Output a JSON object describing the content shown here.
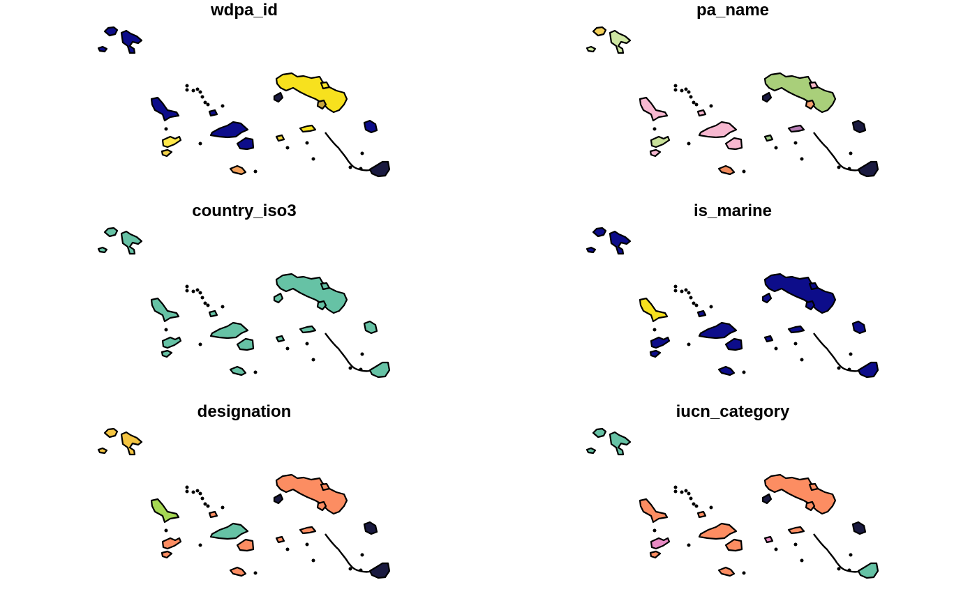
{
  "panels": [
    {
      "title": "wdpa_id",
      "colors": [
        "#0d0d8a",
        "#0d0d8a",
        "#0d0d8a",
        "#0d0d8a",
        "#f7e11e",
        "#0d0d8a",
        "#0d0d8a",
        "#0d0d8a",
        "#ffe84a",
        "#f3d34b",
        "#f7e11e",
        "#c9a63c",
        "#0d0d8a",
        "#f4a15a",
        "#1a1a40",
        "#1a1a40",
        "#f2d63a",
        "#f9e42a"
      ]
    },
    {
      "title": "pa_name",
      "colors": [
        "#f4d05a",
        "#cfe7a3",
        "#cfe7a3",
        "#f7b8d0",
        "#a9cf7a",
        "#f7b8d0",
        "#f7b8d0",
        "#f7b8d0",
        "#c9e19a",
        "#f7b8d0",
        "#b77db5",
        "#f6a270",
        "#1a1a40",
        "#f08a5c",
        "#1a1a40",
        "#1a1a40",
        "#a3d08a",
        "#f6b8c8"
      ]
    },
    {
      "title": "country_iso3",
      "colors": [
        "#66c2a5",
        "#66c2a5",
        "#66c2a5",
        "#66c2a5",
        "#66c2a5",
        "#66c2a5",
        "#66c2a5",
        "#66c2a5",
        "#66c2a5",
        "#66c2a5",
        "#66c2a5",
        "#66c2a5",
        "#66c2a5",
        "#66c2a5",
        "#66c2a5",
        "#66c2a5",
        "#66c2a5",
        "#66c2a5"
      ]
    },
    {
      "title": "is_marine",
      "colors": [
        "#0d0d8a",
        "#0d0d8a",
        "#0d0d8a",
        "#f7e11e",
        "#0d0d8a",
        "#0d0d8a",
        "#0d0d8a",
        "#0d0d8a",
        "#0d0d8a",
        "#0d0d8a",
        "#0d0d8a",
        "#0d0d8a",
        "#0d0d8a",
        "#0d0d8a",
        "#0d0d8a",
        "#0d0d8a",
        "#0d0d8a",
        "#0d0d8a"
      ]
    },
    {
      "title": "designation",
      "colors": [
        "#f4c542",
        "#f4c542",
        "#f4c542",
        "#a6d854",
        "#fc8d62",
        "#fc8d62",
        "#66c2a5",
        "#fc8d62",
        "#fc8d62",
        "#fc8d62",
        "#fc8d62",
        "#fc8d62",
        "#1a1a40",
        "#fc8d62",
        "#1a1a40",
        "#1a1a40",
        "#fc8d62",
        "#fc8d62"
      ]
    },
    {
      "title": "iucn_category",
      "colors": [
        "#66c2a5",
        "#66c2a5",
        "#66c2a5",
        "#fc8d62",
        "#fc8d62",
        "#fc8d62",
        "#fc8d62",
        "#fc8d62",
        "#e78ac3",
        "#fc8d62",
        "#fc8d62",
        "#fc8d62",
        "#1a1a40",
        "#fc8d62",
        "#66c2a5",
        "#1a1a40",
        "#e78ac3",
        "#fc8d62"
      ]
    }
  ]
}
